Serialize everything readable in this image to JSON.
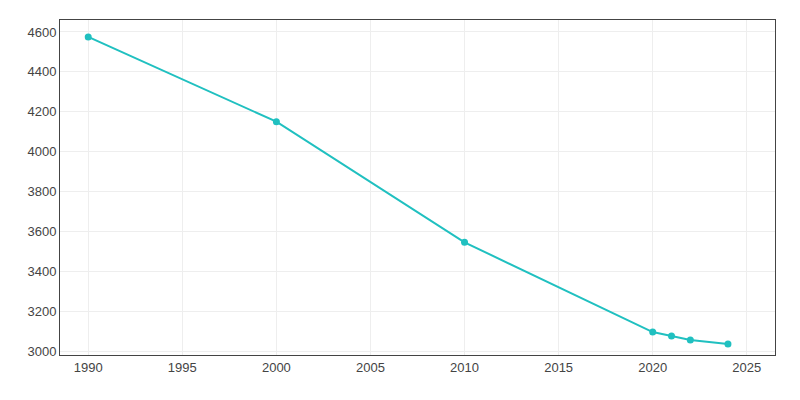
{
  "chart_data": {
    "type": "line",
    "x": [
      1990,
      2000,
      2010,
      2020,
      2021,
      2022,
      2024
    ],
    "values": [
      4575,
      4150,
      3545,
      3095,
      3075,
      3055,
      3035
    ],
    "color": "#20c0c0",
    "marker": "circle",
    "xlim": [
      1988.5,
      2026.5
    ],
    "ylim": [
      2980,
      4660
    ],
    "xticks": [
      1990,
      1995,
      2000,
      2005,
      2010,
      2015,
      2020,
      2025
    ],
    "yticks": [
      3000,
      3200,
      3400,
      3600,
      3800,
      4000,
      4200,
      4400,
      4600
    ],
    "grid": true
  }
}
